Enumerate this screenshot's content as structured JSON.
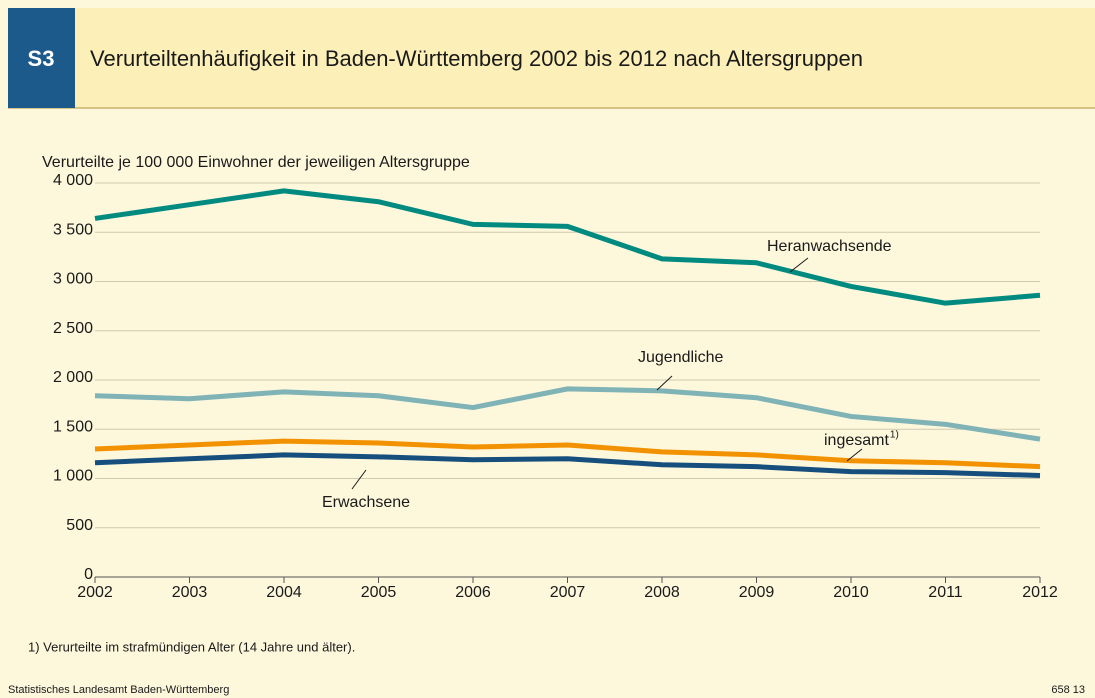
{
  "header": {
    "badge": "S3",
    "title": "Verurteiltenhäufigkeit in Baden-Württemberg 2002 bis 2012 nach Altersgruppen"
  },
  "chart_data": {
    "type": "line",
    "ylabel": "Verurteilte je 100 000 Einwohner der jeweiligen Altersgruppe",
    "x": [
      2002,
      2003,
      2004,
      2005,
      2006,
      2007,
      2008,
      2009,
      2010,
      2011,
      2012
    ],
    "xlim": [
      2002,
      2012
    ],
    "xticks": [
      2002,
      2003,
      2004,
      2005,
      2006,
      2007,
      2008,
      2009,
      2010,
      2011,
      2012
    ],
    "ylim": [
      0,
      4000
    ],
    "yticks": [
      0,
      500,
      {
        "value": 1000,
        "label": "1 000"
      },
      {
        "value": 1500,
        "label": "1 500"
      },
      {
        "value": 2000,
        "label": "2 000"
      },
      {
        "value": 2500,
        "label": "2 500"
      },
      {
        "value": 3000,
        "label": "3 000"
      },
      {
        "value": 3500,
        "label": "3 500"
      },
      {
        "value": 4000,
        "label": "4 000"
      }
    ],
    "grid": true,
    "series": [
      {
        "name": "Heranwachsende",
        "color": "#008a80",
        "values": [
          3640,
          3780,
          3920,
          3810,
          3580,
          3560,
          3230,
          3190,
          2950,
          2780,
          2860
        ]
      },
      {
        "name": "Jugendliche",
        "color": "#7fb3b6",
        "values": [
          1840,
          1810,
          1880,
          1840,
          1720,
          1910,
          1890,
          1820,
          1630,
          1550,
          1400
        ]
      },
      {
        "name": "ingesamt",
        "footnote_mark": "1)",
        "color": "#f39200",
        "values": [
          1300,
          1340,
          1380,
          1360,
          1320,
          1340,
          1270,
          1240,
          1180,
          1160,
          1120
        ]
      },
      {
        "name": "Erwachsene",
        "color": "#164e7e",
        "values": [
          1160,
          1200,
          1240,
          1220,
          1190,
          1200,
          1140,
          1120,
          1070,
          1060,
          1030
        ]
      }
    ]
  },
  "footnote": "1) Verurteilte im strafmündigen Alter (14 Jahre und älter).",
  "source": "Statistisches Landesamt Baden-Württemberg",
  "code": "658 13"
}
